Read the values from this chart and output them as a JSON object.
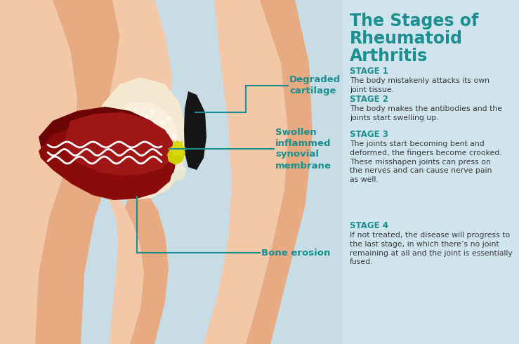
{
  "bg_color": "#c8dce6",
  "right_panel_bg": "#d0e4ed",
  "title_line1": "The Stages of",
  "title_line2": "Rheumatoid",
  "title_line3": "Arthritis",
  "title_color": "#1a8f8f",
  "stage_label_color": "#1a8f8f",
  "body_text_color": "#3a3a3a",
  "stages": [
    {
      "label": "STAGE 1",
      "text": "The body mistakenly attacks its own\njoint tissue."
    },
    {
      "label": "STAGE 2",
      "text": "The body makes the antibodies and the\njoints start swelling up."
    },
    {
      "label": "STAGE 3",
      "text": "The joints start becoming bent and\ndeformed, the fingers become crooked.\nThese misshapen joints can press on\nthe nerves and can cause nerve pain\nas well."
    },
    {
      "label": "STAGE 4",
      "text": "If not treated, the disease will progress to\nthe last stage, in which there’s no joint\nremaining at all and the joint is essentially\nfused."
    }
  ],
  "ann_color": "#1a8f8f",
  "skin_light": "#f2c8a8",
  "skin_mid": "#e8aa80",
  "skin_shade": "#d89060",
  "bone_light": "#f5e8d0",
  "dark_red1": "#8b0a0a",
  "dark_red2": "#6b0505",
  "dark_red3": "#a01515",
  "black_cartilage": "#151515",
  "yellow_fluid": "#d0d000",
  "white_bone": "#e8e8d8"
}
